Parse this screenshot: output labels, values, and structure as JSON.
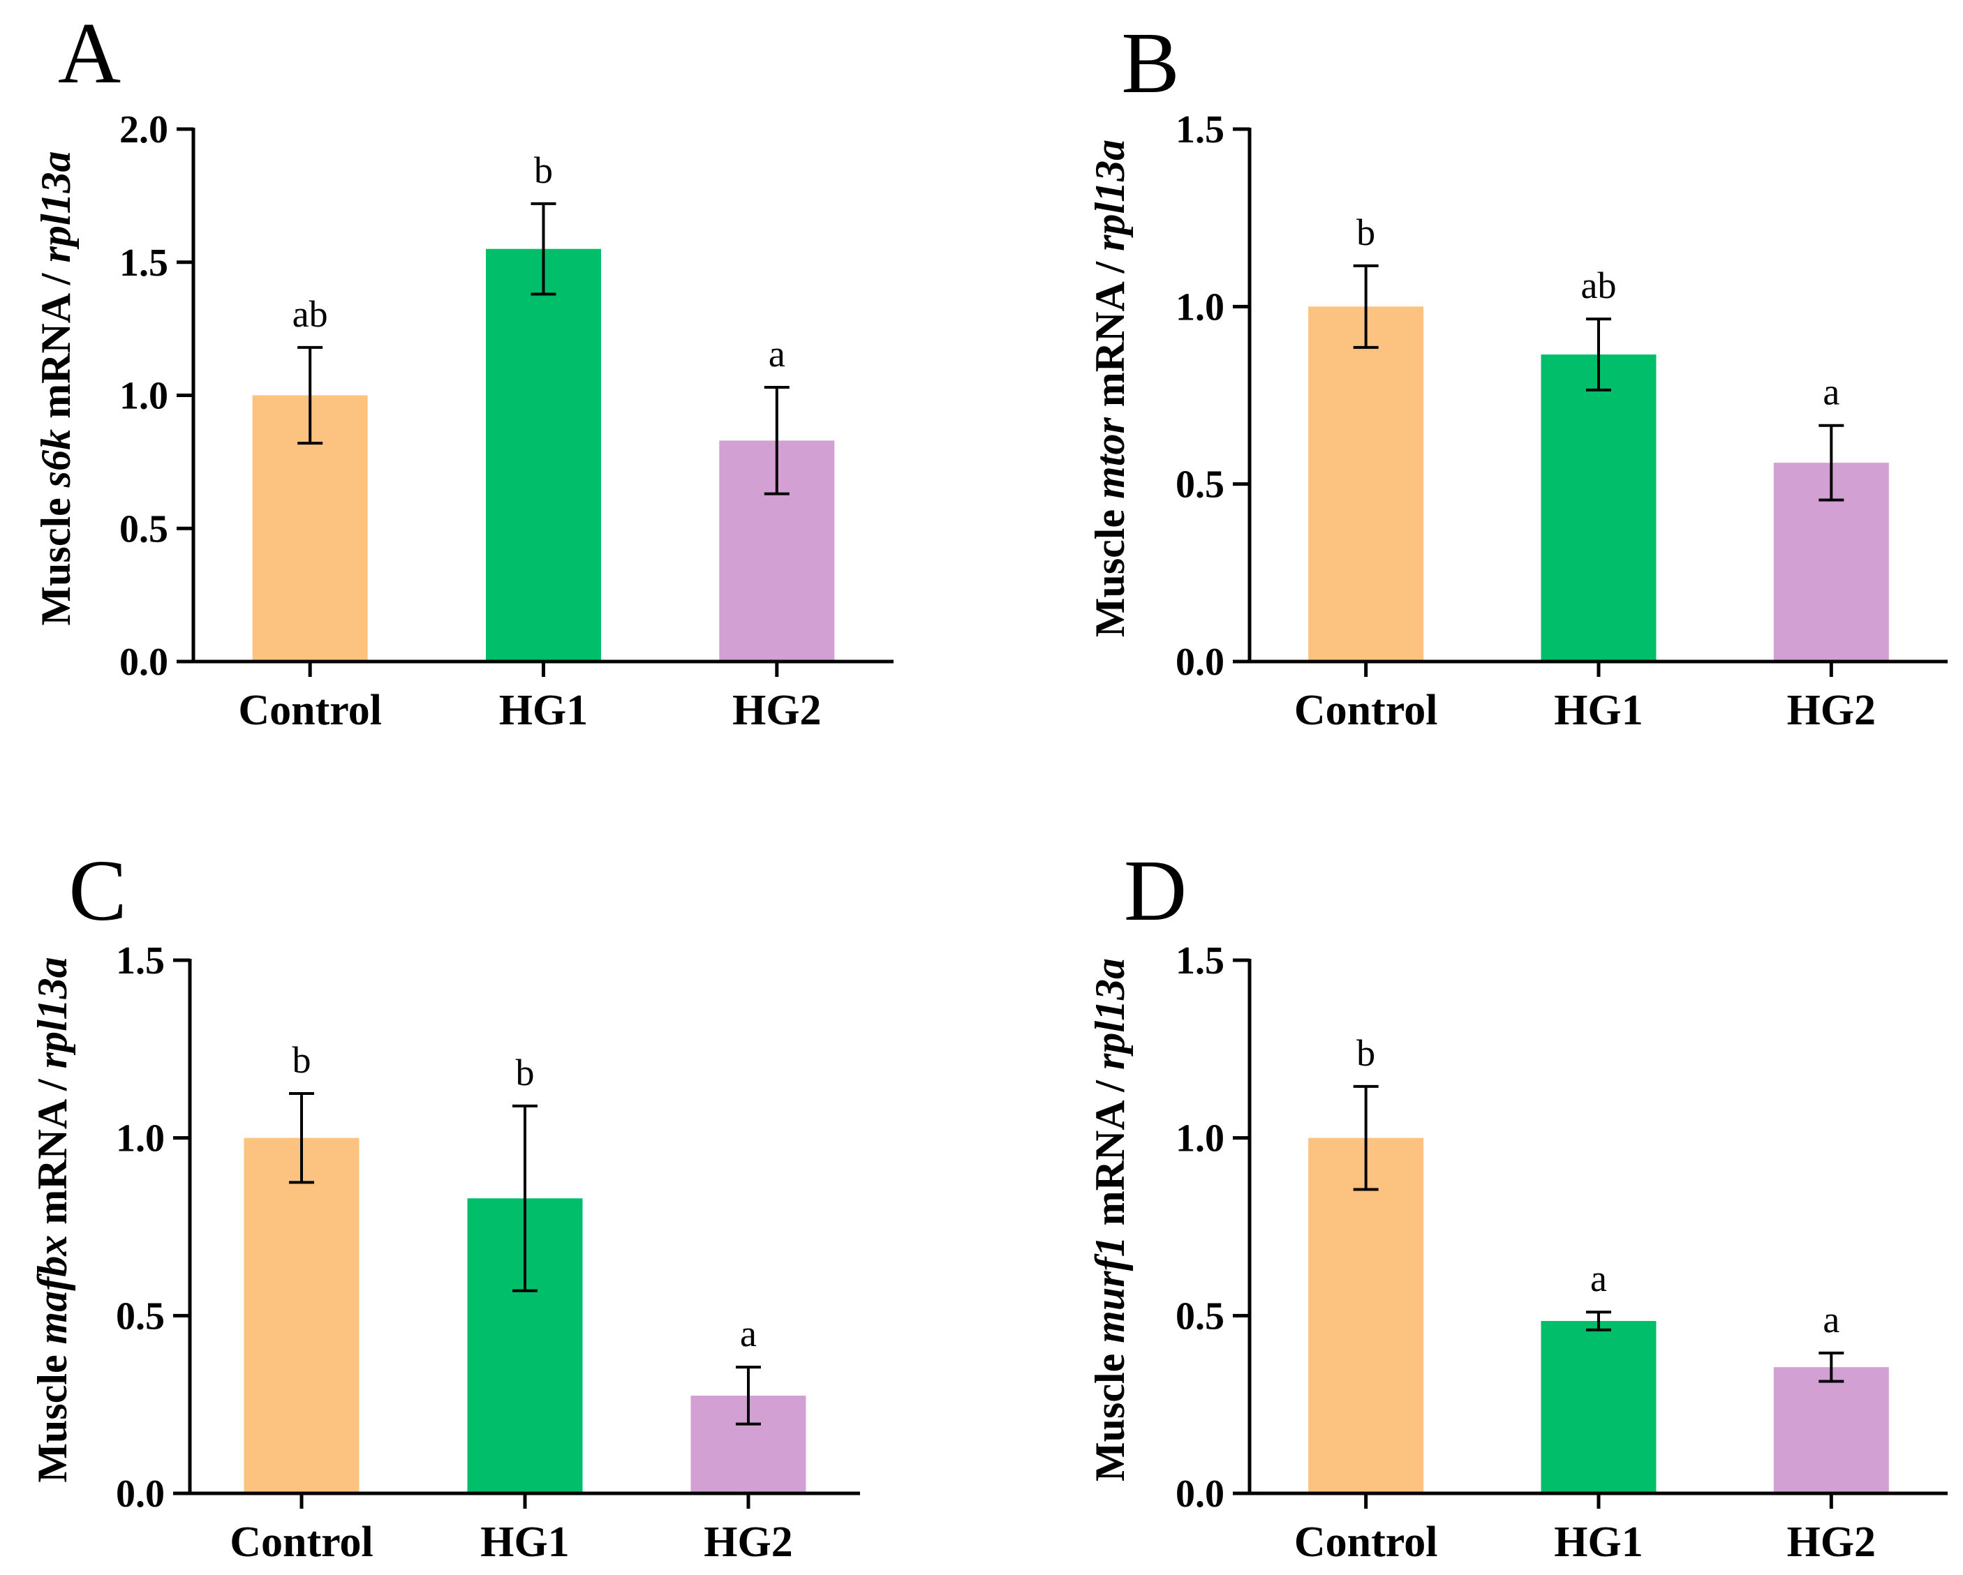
{
  "colors": {
    "Control": "#fbc280",
    "HG1": "#00be6a",
    "HG2": "#d3a0d3",
    "axis": "#000000"
  },
  "chart_data": [
    {
      "type": "bar",
      "panel": "A",
      "categories": [
        "Control",
        "HG1",
        "HG2"
      ],
      "values": [
        1.0,
        1.55,
        0.83
      ],
      "errors": [
        0.18,
        0.17,
        0.2
      ],
      "significance": [
        "ab",
        "b",
        "a"
      ],
      "ylabel": {
        "pre": "Muscle ",
        "gene": "s6k",
        "mid": " mRNA / ",
        "ref": "rpl13a"
      },
      "ylim": [
        0,
        2.0
      ],
      "yticks": [
        "0.0",
        "0.5",
        "1.0",
        "1.5",
        "2.0"
      ],
      "grid": false
    },
    {
      "type": "bar",
      "panel": "B",
      "categories": [
        "Control",
        "HG1",
        "HG2"
      ],
      "values": [
        1.0,
        0.865,
        0.56
      ],
      "errors": [
        0.115,
        0.1,
        0.105
      ],
      "significance": [
        "b",
        "ab",
        "a"
      ],
      "ylabel": {
        "pre": "Muscle ",
        "gene": "mtor",
        "mid": " mRNA / ",
        "ref": "rpl13a"
      },
      "ylim": [
        0,
        1.5
      ],
      "yticks": [
        "0.0",
        "0.5",
        "1.0",
        "1.5"
      ],
      "grid": false
    },
    {
      "type": "bar",
      "panel": "C",
      "categories": [
        "Control",
        "HG1",
        "HG2"
      ],
      "values": [
        1.0,
        0.83,
        0.275
      ],
      "errors": [
        0.125,
        0.26,
        0.08
      ],
      "significance": [
        "b",
        "b",
        "a"
      ],
      "ylabel": {
        "pre": "Muscle ",
        "gene": "mafbx",
        "mid": " mRNA / ",
        "ref": "rpl13a"
      },
      "ylim": [
        0,
        1.5
      ],
      "yticks": [
        "0.0",
        "0.5",
        "1.0",
        "1.5"
      ],
      "grid": false
    },
    {
      "type": "bar",
      "panel": "D",
      "categories": [
        "Control",
        "HG1",
        "HG2"
      ],
      "values": [
        1.0,
        0.485,
        0.355
      ],
      "errors": [
        0.145,
        0.025,
        0.04
      ],
      "significance": [
        "b",
        "a",
        "a"
      ],
      "ylabel": {
        "pre": "Muscle ",
        "gene": "murf1",
        "mid": " mRNA / ",
        "ref": "rpl13a"
      },
      "ylim": [
        0,
        1.5
      ],
      "yticks": [
        "0.0",
        "0.5",
        "1.0",
        "1.5"
      ],
      "grid": false
    }
  ]
}
